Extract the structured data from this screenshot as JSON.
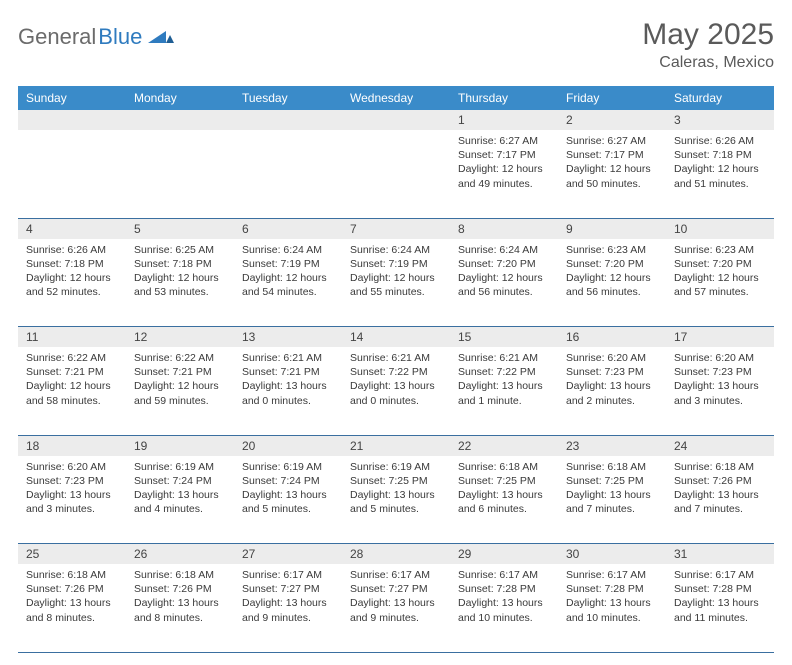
{
  "brand": {
    "part1": "General",
    "part2": "Blue"
  },
  "title": "May 2025",
  "location": "Caleras, Mexico",
  "colors": {
    "header_bg": "#3a8bc9",
    "header_text": "#ffffff",
    "daynum_bg": "#ececec",
    "rule": "#3a6fa0",
    "body_text": "#3a3a3a",
    "title_text": "#5a5a5a",
    "brand_gray": "#6b6b6b",
    "brand_blue": "#2f7bbf"
  },
  "day_headers": [
    "Sunday",
    "Monday",
    "Tuesday",
    "Wednesday",
    "Thursday",
    "Friday",
    "Saturday"
  ],
  "weeks": [
    [
      null,
      null,
      null,
      null,
      {
        "n": "1",
        "sunrise": "Sunrise: 6:27 AM",
        "sunset": "Sunset: 7:17 PM",
        "daylight": "Daylight: 12 hours and 49 minutes."
      },
      {
        "n": "2",
        "sunrise": "Sunrise: 6:27 AM",
        "sunset": "Sunset: 7:17 PM",
        "daylight": "Daylight: 12 hours and 50 minutes."
      },
      {
        "n": "3",
        "sunrise": "Sunrise: 6:26 AM",
        "sunset": "Sunset: 7:18 PM",
        "daylight": "Daylight: 12 hours and 51 minutes."
      }
    ],
    [
      {
        "n": "4",
        "sunrise": "Sunrise: 6:26 AM",
        "sunset": "Sunset: 7:18 PM",
        "daylight": "Daylight: 12 hours and 52 minutes."
      },
      {
        "n": "5",
        "sunrise": "Sunrise: 6:25 AM",
        "sunset": "Sunset: 7:18 PM",
        "daylight": "Daylight: 12 hours and 53 minutes."
      },
      {
        "n": "6",
        "sunrise": "Sunrise: 6:24 AM",
        "sunset": "Sunset: 7:19 PM",
        "daylight": "Daylight: 12 hours and 54 minutes."
      },
      {
        "n": "7",
        "sunrise": "Sunrise: 6:24 AM",
        "sunset": "Sunset: 7:19 PM",
        "daylight": "Daylight: 12 hours and 55 minutes."
      },
      {
        "n": "8",
        "sunrise": "Sunrise: 6:24 AM",
        "sunset": "Sunset: 7:20 PM",
        "daylight": "Daylight: 12 hours and 56 minutes."
      },
      {
        "n": "9",
        "sunrise": "Sunrise: 6:23 AM",
        "sunset": "Sunset: 7:20 PM",
        "daylight": "Daylight: 12 hours and 56 minutes."
      },
      {
        "n": "10",
        "sunrise": "Sunrise: 6:23 AM",
        "sunset": "Sunset: 7:20 PM",
        "daylight": "Daylight: 12 hours and 57 minutes."
      }
    ],
    [
      {
        "n": "11",
        "sunrise": "Sunrise: 6:22 AM",
        "sunset": "Sunset: 7:21 PM",
        "daylight": "Daylight: 12 hours and 58 minutes."
      },
      {
        "n": "12",
        "sunrise": "Sunrise: 6:22 AM",
        "sunset": "Sunset: 7:21 PM",
        "daylight": "Daylight: 12 hours and 59 minutes."
      },
      {
        "n": "13",
        "sunrise": "Sunrise: 6:21 AM",
        "sunset": "Sunset: 7:21 PM",
        "daylight": "Daylight: 13 hours and 0 minutes."
      },
      {
        "n": "14",
        "sunrise": "Sunrise: 6:21 AM",
        "sunset": "Sunset: 7:22 PM",
        "daylight": "Daylight: 13 hours and 0 minutes."
      },
      {
        "n": "15",
        "sunrise": "Sunrise: 6:21 AM",
        "sunset": "Sunset: 7:22 PM",
        "daylight": "Daylight: 13 hours and 1 minute."
      },
      {
        "n": "16",
        "sunrise": "Sunrise: 6:20 AM",
        "sunset": "Sunset: 7:23 PM",
        "daylight": "Daylight: 13 hours and 2 minutes."
      },
      {
        "n": "17",
        "sunrise": "Sunrise: 6:20 AM",
        "sunset": "Sunset: 7:23 PM",
        "daylight": "Daylight: 13 hours and 3 minutes."
      }
    ],
    [
      {
        "n": "18",
        "sunrise": "Sunrise: 6:20 AM",
        "sunset": "Sunset: 7:23 PM",
        "daylight": "Daylight: 13 hours and 3 minutes."
      },
      {
        "n": "19",
        "sunrise": "Sunrise: 6:19 AM",
        "sunset": "Sunset: 7:24 PM",
        "daylight": "Daylight: 13 hours and 4 minutes."
      },
      {
        "n": "20",
        "sunrise": "Sunrise: 6:19 AM",
        "sunset": "Sunset: 7:24 PM",
        "daylight": "Daylight: 13 hours and 5 minutes."
      },
      {
        "n": "21",
        "sunrise": "Sunrise: 6:19 AM",
        "sunset": "Sunset: 7:25 PM",
        "daylight": "Daylight: 13 hours and 5 minutes."
      },
      {
        "n": "22",
        "sunrise": "Sunrise: 6:18 AM",
        "sunset": "Sunset: 7:25 PM",
        "daylight": "Daylight: 13 hours and 6 minutes."
      },
      {
        "n": "23",
        "sunrise": "Sunrise: 6:18 AM",
        "sunset": "Sunset: 7:25 PM",
        "daylight": "Daylight: 13 hours and 7 minutes."
      },
      {
        "n": "24",
        "sunrise": "Sunrise: 6:18 AM",
        "sunset": "Sunset: 7:26 PM",
        "daylight": "Daylight: 13 hours and 7 minutes."
      }
    ],
    [
      {
        "n": "25",
        "sunrise": "Sunrise: 6:18 AM",
        "sunset": "Sunset: 7:26 PM",
        "daylight": "Daylight: 13 hours and 8 minutes."
      },
      {
        "n": "26",
        "sunrise": "Sunrise: 6:18 AM",
        "sunset": "Sunset: 7:26 PM",
        "daylight": "Daylight: 13 hours and 8 minutes."
      },
      {
        "n": "27",
        "sunrise": "Sunrise: 6:17 AM",
        "sunset": "Sunset: 7:27 PM",
        "daylight": "Daylight: 13 hours and 9 minutes."
      },
      {
        "n": "28",
        "sunrise": "Sunrise: 6:17 AM",
        "sunset": "Sunset: 7:27 PM",
        "daylight": "Daylight: 13 hours and 9 minutes."
      },
      {
        "n": "29",
        "sunrise": "Sunrise: 6:17 AM",
        "sunset": "Sunset: 7:28 PM",
        "daylight": "Daylight: 13 hours and 10 minutes."
      },
      {
        "n": "30",
        "sunrise": "Sunrise: 6:17 AM",
        "sunset": "Sunset: 7:28 PM",
        "daylight": "Daylight: 13 hours and 10 minutes."
      },
      {
        "n": "31",
        "sunrise": "Sunrise: 6:17 AM",
        "sunset": "Sunset: 7:28 PM",
        "daylight": "Daylight: 13 hours and 11 minutes."
      }
    ]
  ]
}
